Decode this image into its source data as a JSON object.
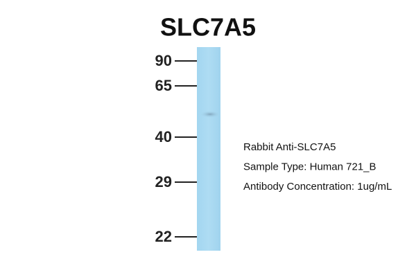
{
  "title": "SLC7A5",
  "markers": [
    "90",
    "65",
    "40",
    "29",
    "22"
  ],
  "info": [
    "Rabbit Anti-SLC7A5",
    "Sample Type: Human 721_B",
    "Antibody Concentration: 1ug/mL"
  ]
}
